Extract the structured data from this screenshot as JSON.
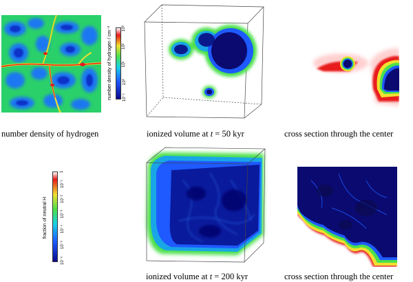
{
  "captions": {
    "density": "number density of hydrogen",
    "ionized_50_pre": "ionized volume at ",
    "ionized_50_var": "t",
    "ionized_50_post": " = 50 kyr",
    "cross_top": "cross section through the center",
    "ionized_200_pre": "ionized volume at ",
    "ionized_200_var": "t",
    "ionized_200_post": " = 200 kyr",
    "cross_bottom": "cross section through the center"
  },
  "colorbar_density": {
    "label": "number density of hydrogen / cm⁻³",
    "ticks": [
      "10⁻¹",
      "10⁰",
      "10¹",
      "10²",
      "10³"
    ]
  },
  "colorbar_fraction": {
    "label": "fraction of neutral H",
    "ticks": [
      "10⁻⁶",
      "10⁻⁵",
      "10⁻⁴",
      "10⁻³",
      "10⁻²",
      "10⁻¹",
      "1"
    ]
  },
  "colors": {
    "deep_blue": "#0a0a8c",
    "blue": "#1e5aff",
    "cyan": "#19d2e6",
    "green": "#4be04b",
    "yellow": "#f0e030",
    "red": "#e81a1a",
    "white": "#ffffff"
  }
}
